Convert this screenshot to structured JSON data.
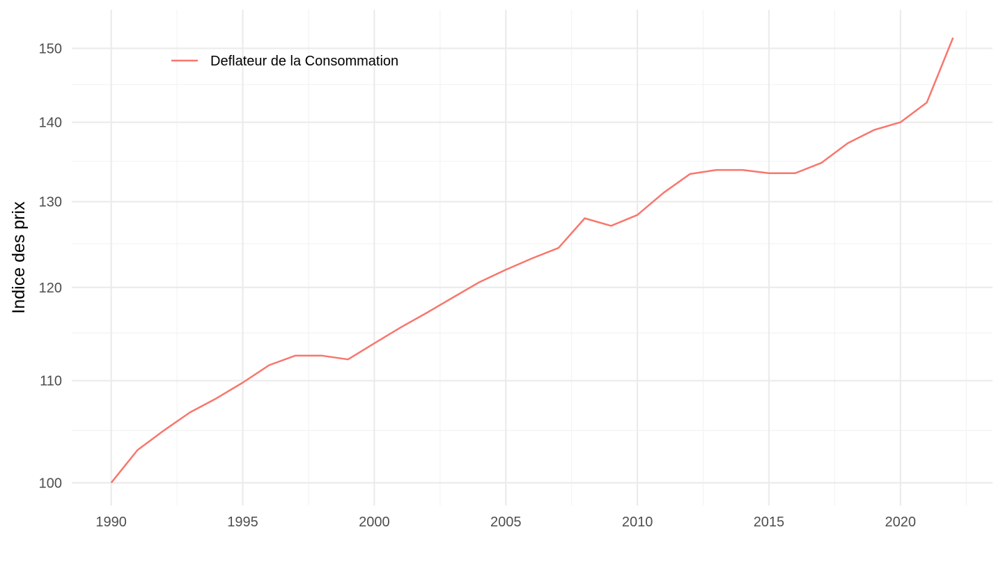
{
  "chart_data": {
    "type": "line",
    "xlabel": "",
    "ylabel": "Indice des prix",
    "xlim": [
      1988.5,
      2023.5
    ],
    "ylim": [
      97.9,
      155.5
    ],
    "log_y": true,
    "x_ticks": [
      1990,
      1995,
      2000,
      2005,
      2010,
      2015,
      2020
    ],
    "x_minor_ticks": [
      1992.5,
      1997.5,
      2002.5,
      2007.5,
      2012.5,
      2017.5,
      2022.5
    ],
    "y_ticks": [
      100,
      110,
      120,
      130,
      140,
      150
    ],
    "y_minor_ticks": [
      105,
      115,
      125,
      135,
      145
    ],
    "grid": true,
    "legend_position": "top-left",
    "series": [
      {
        "name": "Deflateur de la Consommation",
        "color": "#F8766D",
        "x": [
          1990,
          1991,
          1992,
          1993,
          1994,
          1995,
          1996,
          1997,
          1998,
          1999,
          2000,
          2001,
          2002,
          2003,
          2004,
          2005,
          2006,
          2007,
          2008,
          2009,
          2010,
          2011,
          2012,
          2013,
          2014,
          2015,
          2016,
          2017,
          2018,
          2019,
          2020,
          2021,
          2022
        ],
        "y": [
          100.0,
          103.1,
          105.0,
          106.8,
          108.2,
          109.8,
          111.6,
          112.6,
          112.6,
          112.2,
          113.9,
          115.6,
          117.2,
          118.9,
          120.6,
          122.0,
          123.3,
          124.5,
          128.0,
          127.1,
          128.4,
          131.1,
          133.4,
          133.9,
          133.9,
          133.5,
          133.5,
          134.8,
          137.3,
          139.0,
          140.0,
          142.6,
          151.5
        ]
      }
    ]
  }
}
